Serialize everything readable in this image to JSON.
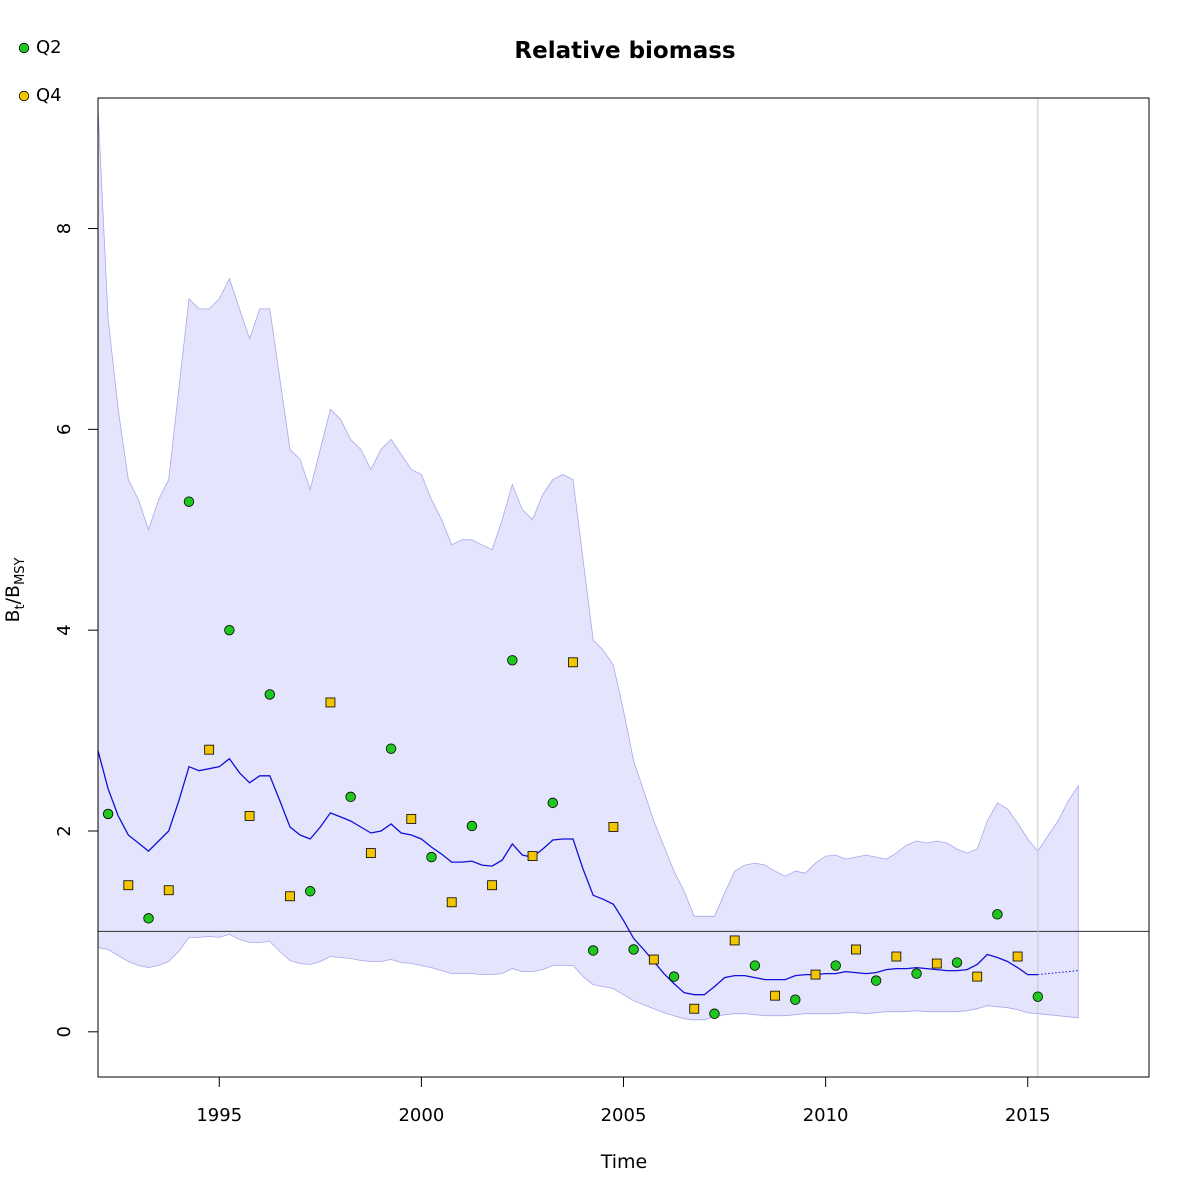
{
  "chart_data": {
    "type": "line",
    "title": "Relative biomass",
    "xlabel": "Time",
    "ylabel": {
      "main": "B",
      "sub1": "t",
      "sep": "/",
      "main2": "B",
      "sub2": "MSY"
    },
    "xlim": [
      1992,
      2018
    ],
    "ylim": [
      -0.45,
      9.3
    ],
    "x_ticks": [
      1995,
      2000,
      2005,
      2010,
      2015
    ],
    "y_ticks": [
      0,
      2,
      4,
      6,
      8
    ],
    "reference_line_y": 1,
    "vertical_line_x": 2015.25,
    "grid": false,
    "legend_position": "top-left",
    "colors": {
      "median_line": "#1010d8",
      "ci_fill": "#e4e4fc",
      "ci_edge": "#a8a8ee",
      "q2": "#1ec81e",
      "q4": "#f2c500",
      "reference": "#333333",
      "vline": "#c8c8c8"
    },
    "legend": [
      {
        "name": "Q2",
        "shape": "circle",
        "color": "#1ec81e"
      },
      {
        "name": "Q4",
        "shape": "square",
        "color": "#f2c500"
      }
    ],
    "median": {
      "x": [
        1992.0,
        1992.25,
        1992.5,
        1992.75,
        1993.0,
        1993.25,
        1993.5,
        1993.75,
        1994.0,
        1994.25,
        1994.5,
        1994.75,
        1995.0,
        1995.25,
        1995.5,
        1995.75,
        1996.0,
        1996.25,
        1996.5,
        1996.75,
        1997.0,
        1997.25,
        1997.5,
        1997.75,
        1998.0,
        1998.25,
        1998.5,
        1998.75,
        1999.0,
        1999.25,
        1999.5,
        1999.75,
        2000.0,
        2000.25,
        2000.5,
        2000.75,
        2001.0,
        2001.25,
        2001.5,
        2001.75,
        2002.0,
        2002.25,
        2002.5,
        2002.75,
        2003.0,
        2003.25,
        2003.5,
        2003.75,
        2004.0,
        2004.25,
        2004.5,
        2004.75,
        2005.0,
        2005.25,
        2005.5,
        2005.75,
        2006.0,
        2006.25,
        2006.5,
        2006.75,
        2007.0,
        2007.25,
        2007.5,
        2007.75,
        2008.0,
        2008.25,
        2008.5,
        2008.75,
        2009.0,
        2009.25,
        2009.5,
        2009.75,
        2010.0,
        2010.25,
        2010.5,
        2010.75,
        2011.0,
        2011.25,
        2011.5,
        2011.75,
        2012.0,
        2012.25,
        2012.5,
        2012.75,
        2013.0,
        2013.25,
        2013.5,
        2013.75,
        2014.0,
        2014.25,
        2014.5,
        2014.75,
        2015.0,
        2015.25
      ],
      "y": [
        2.8,
        2.42,
        2.15,
        1.96,
        1.88,
        1.8,
        1.9,
        2.0,
        2.3,
        2.64,
        2.6,
        2.62,
        2.64,
        2.72,
        2.58,
        2.48,
        2.55,
        2.55,
        2.3,
        2.04,
        1.96,
        1.92,
        2.04,
        2.18,
        2.14,
        2.1,
        2.04,
        1.98,
        2.0,
        2.07,
        1.98,
        1.96,
        1.92,
        1.84,
        1.77,
        1.69,
        1.69,
        1.7,
        1.66,
        1.65,
        1.71,
        1.87,
        1.76,
        1.74,
        1.82,
        1.91,
        1.92,
        1.92,
        1.62,
        1.36,
        1.32,
        1.27,
        1.11,
        0.93,
        0.82,
        0.7,
        0.58,
        0.48,
        0.39,
        0.37,
        0.37,
        0.45,
        0.54,
        0.56,
        0.56,
        0.54,
        0.52,
        0.52,
        0.52,
        0.56,
        0.57,
        0.57,
        0.58,
        0.58,
        0.6,
        0.59,
        0.58,
        0.59,
        0.62,
        0.63,
        0.63,
        0.64,
        0.63,
        0.62,
        0.61,
        0.61,
        0.62,
        0.67,
        0.77,
        0.74,
        0.7,
        0.64,
        0.57,
        0.57
      ]
    },
    "projection": {
      "x": [
        2015.25,
        2015.5,
        2015.75,
        2016.0,
        2016.25
      ],
      "y": [
        0.57,
        0.58,
        0.59,
        0.6,
        0.61
      ]
    },
    "ci": {
      "x": [
        1992.0,
        1992.25,
        1992.5,
        1992.75,
        1993.0,
        1993.25,
        1993.5,
        1993.75,
        1994.0,
        1994.25,
        1994.5,
        1994.75,
        1995.0,
        1995.25,
        1995.5,
        1995.75,
        1996.0,
        1996.25,
        1996.5,
        1996.75,
        1997.0,
        1997.25,
        1997.5,
        1997.75,
        1998.0,
        1998.25,
        1998.5,
        1998.75,
        1999.0,
        1999.25,
        1999.5,
        1999.75,
        2000.0,
        2000.25,
        2000.5,
        2000.75,
        2001.0,
        2001.25,
        2001.5,
        2001.75,
        2002.0,
        2002.25,
        2002.5,
        2002.75,
        2003.0,
        2003.25,
        2003.5,
        2003.75,
        2004.0,
        2004.25,
        2004.5,
        2004.75,
        2005.0,
        2005.25,
        2005.5,
        2005.75,
        2006.0,
        2006.25,
        2006.5,
        2006.75,
        2007.0,
        2007.25,
        2007.5,
        2007.75,
        2008.0,
        2008.25,
        2008.5,
        2008.75,
        2009.0,
        2009.25,
        2009.5,
        2009.75,
        2010.0,
        2010.25,
        2010.5,
        2010.75,
        2011.0,
        2011.25,
        2011.5,
        2011.75,
        2012.0,
        2012.25,
        2012.5,
        2012.75,
        2013.0,
        2013.25,
        2013.5,
        2013.75,
        2014.0,
        2014.25,
        2014.5,
        2014.75,
        2015.0,
        2015.25,
        2015.5,
        2015.75,
        2016.0,
        2016.25
      ],
      "lower": [
        0.84,
        0.82,
        0.76,
        0.7,
        0.66,
        0.64,
        0.66,
        0.7,
        0.8,
        0.94,
        0.94,
        0.95,
        0.94,
        0.97,
        0.92,
        0.89,
        0.89,
        0.9,
        0.8,
        0.71,
        0.68,
        0.67,
        0.7,
        0.75,
        0.74,
        0.73,
        0.71,
        0.7,
        0.7,
        0.72,
        0.69,
        0.68,
        0.66,
        0.64,
        0.61,
        0.58,
        0.58,
        0.58,
        0.57,
        0.57,
        0.58,
        0.63,
        0.6,
        0.6,
        0.62,
        0.66,
        0.66,
        0.66,
        0.55,
        0.47,
        0.45,
        0.43,
        0.37,
        0.31,
        0.27,
        0.23,
        0.19,
        0.16,
        0.13,
        0.12,
        0.12,
        0.15,
        0.17,
        0.18,
        0.18,
        0.17,
        0.16,
        0.16,
        0.16,
        0.17,
        0.18,
        0.18,
        0.18,
        0.18,
        0.19,
        0.19,
        0.18,
        0.19,
        0.2,
        0.2,
        0.2,
        0.21,
        0.2,
        0.2,
        0.2,
        0.2,
        0.21,
        0.23,
        0.26,
        0.25,
        0.24,
        0.22,
        0.19,
        0.18,
        0.17,
        0.16,
        0.15,
        0.14
      ],
      "upper": [
        9.2,
        7.1,
        6.2,
        5.5,
        5.3,
        5.0,
        5.3,
        5.5,
        6.4,
        7.3,
        7.2,
        7.2,
        7.3,
        7.5,
        7.2,
        6.9,
        7.2,
        7.2,
        6.5,
        5.8,
        5.7,
        5.4,
        5.8,
        6.2,
        6.1,
        5.9,
        5.8,
        5.6,
        5.8,
        5.9,
        5.75,
        5.6,
        5.55,
        5.3,
        5.1,
        4.85,
        4.9,
        4.9,
        4.85,
        4.8,
        5.1,
        5.45,
        5.2,
        5.1,
        5.35,
        5.5,
        5.55,
        5.5,
        4.7,
        3.9,
        3.8,
        3.65,
        3.2,
        2.7,
        2.4,
        2.1,
        1.85,
        1.6,
        1.4,
        1.15,
        1.15,
        1.15,
        1.38,
        1.6,
        1.66,
        1.68,
        1.66,
        1.6,
        1.55,
        1.6,
        1.58,
        1.68,
        1.75,
        1.76,
        1.72,
        1.74,
        1.76,
        1.74,
        1.72,
        1.78,
        1.86,
        1.9,
        1.88,
        1.9,
        1.88,
        1.82,
        1.78,
        1.82,
        2.1,
        2.28,
        2.22,
        2.08,
        1.92,
        1.8,
        1.95,
        2.1,
        2.3,
        2.45
      ]
    },
    "series": [
      {
        "name": "Q2",
        "x": [
          1992.25,
          1993.25,
          1994.25,
          1995.25,
          1996.25,
          1997.25,
          1998.25,
          1999.25,
          2000.25,
          2001.25,
          2002.25,
          2003.25,
          2004.25,
          2005.25,
          2006.25,
          2007.25,
          2008.25,
          2009.25,
          2010.25,
          2011.25,
          2012.25,
          2013.25,
          2014.25,
          2015.25
        ],
        "y": [
          2.17,
          1.13,
          5.28,
          4.0,
          3.36,
          1.4,
          2.34,
          2.82,
          1.74,
          2.05,
          3.7,
          2.28,
          0.81,
          0.82,
          0.55,
          0.18,
          0.66,
          0.32,
          0.66,
          0.51,
          0.58,
          0.69,
          1.17,
          0.35
        ]
      },
      {
        "name": "Q4",
        "x": [
          1992.75,
          1993.75,
          1994.75,
          1995.75,
          1996.75,
          1997.75,
          1998.75,
          1999.75,
          2000.75,
          2001.75,
          2002.75,
          2003.75,
          2004.75,
          2005.75,
          2006.75,
          2007.75,
          2008.75,
          2009.75,
          2010.75,
          2011.75,
          2012.75,
          2013.75,
          2014.75
        ],
        "y": [
          1.46,
          1.41,
          2.81,
          2.15,
          1.35,
          3.28,
          1.78,
          2.12,
          1.29,
          1.46,
          1.75,
          3.68,
          2.04,
          0.72,
          0.23,
          0.91,
          0.36,
          0.57,
          0.82,
          0.75,
          0.68,
          0.55,
          0.75
        ]
      }
    ]
  }
}
